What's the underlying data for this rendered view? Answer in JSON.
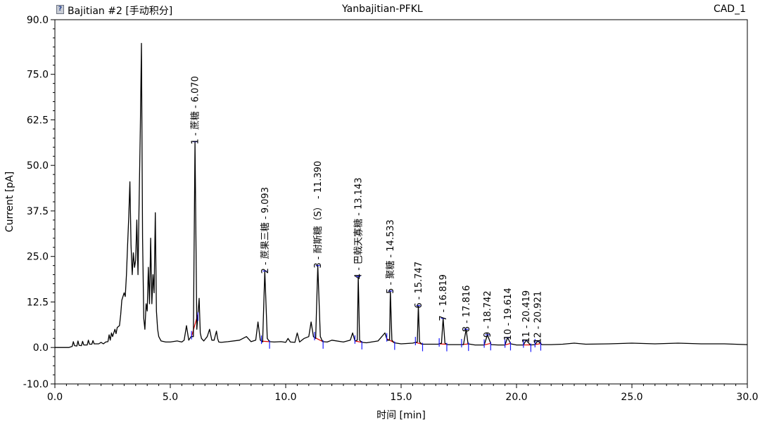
{
  "header": {
    "left_label": "Bajitian #2 [手动积分]",
    "center_label": "Yanbajitian-PFKL",
    "right_label": "CAD_1",
    "report_icon": "report-icon"
  },
  "colors": {
    "trace": "#000000",
    "baseline": "#e00000",
    "peak_marker": "#1a1aff",
    "axis": "#000000"
  },
  "chart_data": {
    "type": "line",
    "title": "Yanbajitian-PFKL",
    "xlabel": "时间 [min]",
    "ylabel": "Current [pA]",
    "xlim": [
      0.0,
      30.0
    ],
    "ylim": [
      -10.0,
      90.0
    ],
    "x_ticks": [
      0.0,
      5.0,
      10.0,
      15.0,
      20.0,
      25.0,
      30.0
    ],
    "x_tick_labels": [
      "0.0",
      "5.0",
      "10.0",
      "15.0",
      "20.0",
      "25.0",
      "30.0"
    ],
    "y_ticks": [
      -10.0,
      0.0,
      12.5,
      25.0,
      37.5,
      50.0,
      62.5,
      75.0,
      90.0
    ],
    "y_tick_labels": [
      "-10.0",
      "0.0",
      "12.5",
      "25.0",
      "37.5",
      "50.0",
      "62.5",
      "75.0",
      "90.0"
    ],
    "series": [
      {
        "name": "CAD_1",
        "x": [
          0.0,
          0.6,
          0.75,
          0.8,
          0.85,
          0.95,
          1.0,
          1.05,
          1.15,
          1.2,
          1.25,
          1.4,
          1.45,
          1.5,
          1.6,
          1.65,
          1.7,
          1.9,
          2.0,
          2.1,
          2.2,
          2.3,
          2.35,
          2.4,
          2.45,
          2.5,
          2.6,
          2.65,
          2.7,
          2.8,
          2.85,
          2.9,
          3.0,
          3.05,
          3.1,
          3.15,
          3.2,
          3.25,
          3.3,
          3.35,
          3.4,
          3.45,
          3.5,
          3.55,
          3.6,
          3.65,
          3.7,
          3.75,
          3.8,
          3.85,
          3.9,
          3.95,
          4.0,
          4.05,
          4.1,
          4.15,
          4.2,
          4.25,
          4.3,
          4.35,
          4.4,
          4.45,
          4.5,
          4.6,
          4.8,
          5.0,
          5.3,
          5.5,
          5.6,
          5.7,
          5.8,
          5.9,
          6.0,
          6.07,
          6.15,
          6.25,
          6.3,
          6.35,
          6.45,
          6.6,
          6.7,
          6.8,
          6.9,
          7.0,
          7.05,
          7.1,
          7.2,
          7.5,
          8.0,
          8.3,
          8.5,
          8.7,
          8.8,
          8.9,
          9.0,
          9.093,
          9.2,
          9.3,
          9.5,
          9.8,
          10.0,
          10.1,
          10.2,
          10.4,
          10.5,
          10.6,
          10.8,
          11.0,
          11.1,
          11.2,
          11.3,
          11.39,
          11.5,
          11.6,
          11.8,
          12.0,
          12.5,
          12.8,
          12.9,
          13.0,
          13.1,
          13.143,
          13.2,
          13.3,
          13.5,
          14.0,
          14.3,
          14.4,
          14.5,
          14.533,
          14.6,
          14.7,
          15.0,
          15.5,
          15.7,
          15.747,
          15.8,
          15.9,
          16.2,
          16.6,
          16.75,
          16.819,
          16.9,
          17.0,
          17.3,
          17.7,
          17.816,
          17.9,
          18.2,
          18.6,
          18.742,
          18.9,
          19.2,
          19.5,
          19.614,
          19.75,
          20.0,
          20.3,
          20.419,
          20.6,
          20.8,
          20.921,
          21.1,
          21.5,
          22.0,
          22.5,
          23.0,
          24.0,
          25.0,
          26.0,
          27.0,
          28.0,
          29.0,
          30.0
        ],
        "y": [
          0.0,
          0.0,
          0.3,
          1.6,
          0.5,
          0.4,
          1.8,
          0.6,
          0.5,
          1.7,
          0.7,
          0.7,
          2.0,
          0.9,
          0.9,
          1.9,
          1.0,
          1.0,
          1.4,
          1.0,
          1.5,
          1.6,
          3.5,
          2.0,
          4.0,
          3.0,
          5.0,
          3.8,
          5.5,
          6.0,
          9.0,
          13.0,
          15.0,
          14.0,
          20.0,
          28.0,
          36.0,
          45.5,
          28.0,
          20.0,
          26.0,
          22.0,
          24.0,
          35.0,
          20.0,
          40.0,
          60.0,
          83.5,
          30.0,
          8.0,
          5.0,
          12.0,
          10.0,
          22.0,
          12.0,
          30.0,
          12.0,
          20.0,
          15.0,
          37.0,
          10.0,
          5.0,
          3.0,
          1.8,
          1.5,
          1.5,
          1.8,
          1.5,
          2.0,
          6.0,
          2.0,
          3.0,
          3.0,
          56.5,
          5.0,
          13.5,
          4.0,
          2.5,
          1.8,
          3.0,
          5.0,
          2.0,
          2.0,
          4.5,
          2.5,
          1.5,
          1.4,
          1.6,
          2.0,
          3.0,
          1.6,
          2.0,
          7.0,
          2.0,
          1.5,
          21.0,
          2.5,
          1.6,
          1.5,
          1.6,
          1.4,
          2.5,
          1.5,
          1.4,
          4.0,
          1.5,
          2.5,
          3.0,
          7.0,
          3.0,
          2.5,
          22.5,
          3.0,
          1.6,
          1.5,
          2.0,
          1.5,
          2.0,
          4.0,
          1.8,
          2.0,
          19.5,
          2.0,
          1.4,
          1.3,
          1.8,
          4.0,
          2.0,
          2.0,
          15.5,
          2.0,
          1.3,
          1.0,
          1.2,
          1.5,
          11.5,
          1.5,
          0.9,
          0.9,
          0.9,
          1.2,
          8.0,
          1.2,
          0.8,
          0.8,
          0.8,
          5.0,
          1.0,
          0.7,
          0.7,
          3.5,
          0.8,
          0.7,
          0.7,
          2.7,
          1.0,
          0.7,
          0.7,
          2.0,
          0.7,
          0.8,
          1.8,
          0.8,
          0.8,
          0.9,
          1.2,
          0.9,
          1.0,
          1.2,
          1.0,
          1.2,
          1.0,
          1.0,
          0.8
        ]
      }
    ],
    "peaks": [
      {
        "num": "1",
        "name": "蔗糖",
        "rt": 6.07,
        "label": "1 - 蔗糖 - 6.070",
        "height": 56.5,
        "start": 5.92,
        "end": 6.2
      },
      {
        "num": "2",
        "name": "蔗果三糖",
        "rt": 9.093,
        "label": "2 - 蔗果三糖 - 9.093",
        "height": 21.0,
        "start": 8.95,
        "end": 9.3
      },
      {
        "num": "3",
        "name": "耐斯糖（S）",
        "rt": 11.39,
        "label": "3 - 耐斯糖（S） - 11.390",
        "height": 22.5,
        "start": 11.25,
        "end": 11.62
      },
      {
        "num": "4",
        "name": "巴戟天寡糖",
        "rt": 13.143,
        "label": "4 - 巴戟天寡糖 - 13.143",
        "height": 19.5,
        "start": 13.0,
        "end": 13.3
      },
      {
        "num": "5",
        "name": "聚糖",
        "rt": 14.533,
        "label": "5 - 聚糖 - 14.533",
        "height": 15.5,
        "start": 14.38,
        "end": 14.72
      },
      {
        "num": "6",
        "name": "",
        "rt": 15.747,
        "label": "6 - 15.747",
        "height": 11.5,
        "start": 15.62,
        "end": 15.93
      },
      {
        "num": "7",
        "name": "",
        "rt": 16.819,
        "label": "7 - 16.819",
        "height": 8.0,
        "start": 16.65,
        "end": 16.98
      },
      {
        "num": "8",
        "name": "",
        "rt": 17.816,
        "label": "8 - 17.816",
        "height": 5.0,
        "start": 17.62,
        "end": 17.92
      },
      {
        "num": "9",
        "name": "",
        "rt": 18.742,
        "label": "9 - 18.742",
        "height": 3.5,
        "start": 18.6,
        "end": 18.88
      },
      {
        "num": "10",
        "name": "",
        "rt": 19.614,
        "label": "10 - 19.614",
        "height": 2.7,
        "start": 19.5,
        "end": 19.74
      },
      {
        "num": "11",
        "name": "",
        "rt": 20.419,
        "label": "11 - 20.419",
        "height": 2.0,
        "start": 20.3,
        "end": 20.62
      },
      {
        "num": "12",
        "name": "",
        "rt": 20.921,
        "label": "12 - 20.921",
        "height": 1.8,
        "start": 20.8,
        "end": 21.05
      }
    ]
  }
}
